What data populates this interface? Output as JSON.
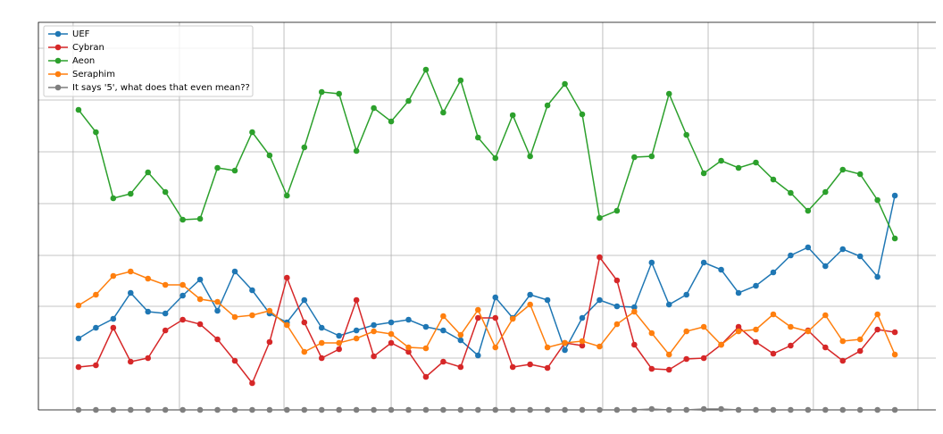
{
  "chart_data": {
    "type": "line",
    "x": [
      0,
      1,
      2,
      3,
      4,
      5,
      6,
      7,
      8,
      9,
      10,
      11,
      12,
      13,
      14,
      15,
      16,
      17,
      18,
      19,
      20,
      21,
      22,
      23,
      24,
      25,
      26,
      27,
      28,
      29,
      30,
      31,
      32,
      33,
      34,
      35,
      36,
      37,
      38,
      39,
      40,
      41,
      42,
      43,
      44,
      45,
      46,
      47
    ],
    "xlim": [
      -2.31,
      49.36
    ],
    "ylim": [
      0,
      434
    ],
    "xgrid": [
      -0.31,
      5.81,
      11.83,
      18.0,
      24.06,
      30.18,
      36.25,
      42.31,
      48.33
    ],
    "ygrid": [
      58,
      116,
      173,
      231,
      289,
      347,
      405
    ],
    "grid": true,
    "legend": "upper left",
    "series": [
      {
        "name": "UEF",
        "color": "#1f77b4",
        "values": [
          80,
          92,
          102,
          131,
          110,
          108,
          128,
          146,
          111,
          155,
          134,
          108,
          98,
          123,
          92,
          83,
          89,
          95,
          98,
          101,
          93,
          89,
          78,
          61,
          126,
          103,
          129,
          123,
          67,
          103,
          123,
          116,
          115,
          165,
          118,
          129,
          165,
          157,
          131,
          139,
          154,
          173,
          182,
          161,
          180,
          172,
          149,
          240
        ]
      },
      {
        "name": "Cybran",
        "color": "#d62728",
        "values": [
          48,
          50,
          92,
          54,
          58,
          89,
          101,
          96,
          79,
          55,
          30,
          76,
          148,
          98,
          58,
          68,
          123,
          60,
          75,
          65,
          37,
          54,
          48,
          103,
          103,
          48,
          51,
          47,
          75,
          72,
          171,
          145,
          73,
          46,
          45,
          57,
          58,
          73,
          93,
          76,
          63,
          72,
          89,
          70,
          55,
          66,
          90,
          87
        ]
      },
      {
        "name": "Aeon",
        "color": "#2ca02c",
        "values": [
          336,
          311,
          237,
          242,
          266,
          244,
          213,
          214,
          271,
          268,
          311,
          285,
          240,
          294,
          356,
          354,
          290,
          338,
          323,
          346,
          381,
          333,
          369,
          305,
          282,
          330,
          284,
          341,
          365,
          331,
          215,
          223,
          283,
          284,
          354,
          308,
          265,
          279,
          271,
          277,
          258,
          243,
          223,
          244,
          269,
          264,
          235,
          192
        ]
      },
      {
        "name": "Seraphim",
        "color": "#ff7f0e",
        "values": [
          117,
          129,
          150,
          155,
          147,
          140,
          140,
          124,
          121,
          104,
          106,
          111,
          95,
          65,
          75,
          75,
          80,
          88,
          85,
          70,
          69,
          105,
          84,
          112,
          70,
          102,
          118,
          70,
          75,
          77,
          71,
          96,
          110,
          86,
          62,
          88,
          93,
          73,
          88,
          90,
          107,
          93,
          88,
          106,
          77,
          79,
          107,
          62
        ]
      },
      {
        "name": "It says '5', what does that even mean??",
        "color": "#7f7f7f",
        "values": [
          0,
          0,
          0,
          0,
          0,
          0,
          0,
          0,
          0,
          0,
          0,
          0,
          0,
          0,
          0,
          0,
          0,
          0,
          0,
          0,
          0,
          0,
          0,
          0,
          0,
          0,
          0,
          0,
          0,
          0,
          0,
          0,
          0,
          1,
          0,
          0,
          1,
          1,
          0,
          0,
          0,
          0,
          0,
          0,
          0,
          0,
          0,
          0
        ]
      }
    ]
  }
}
